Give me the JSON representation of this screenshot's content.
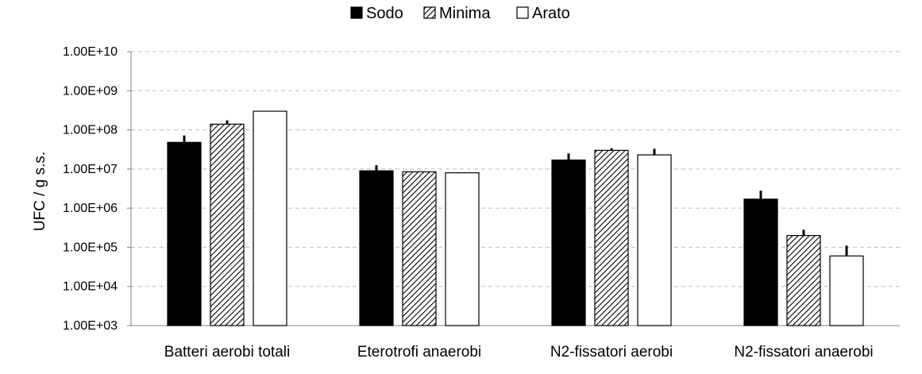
{
  "chart_data": {
    "type": "bar",
    "title": "",
    "xlabel": "",
    "ylabel": "UFC / g s.s.",
    "yscale": "log",
    "ylim": [
      1000,
      10000000000
    ],
    "yticks": [
      {
        "value": 1000,
        "label": "1.00E+03"
      },
      {
        "value": 10000,
        "label": "1.00E+04"
      },
      {
        "value": 100000,
        "label": "1.00E+05"
      },
      {
        "value": 1000000,
        "label": "1.00E+06"
      },
      {
        "value": 10000000,
        "label": "1.00E+07"
      },
      {
        "value": 100000000,
        "label": "1.00E+08"
      },
      {
        "value": 1000000000,
        "label": "1.00E+09"
      },
      {
        "value": 10000000000,
        "label": "1.00E+10"
      }
    ],
    "grid": "horizontal dashed",
    "legend": "top-center",
    "categories": [
      "Batteri aerobi totali",
      "Eterotrofi anaerobi",
      "N2-fissatori aerobi",
      "N2-fissatori anaerobi"
    ],
    "series": [
      {
        "name": "Sodo",
        "fill": "#000000",
        "values": [
          48000000,
          9000000,
          17000000,
          1700000
        ],
        "error_upper": [
          72000000,
          12500000,
          25000000,
          2800000
        ]
      },
      {
        "name": "Minima",
        "fill": "hatch",
        "values": [
          140000000,
          8500000,
          30000000,
          200000
        ],
        "error_upper": [
          175000000,
          8500000,
          34000000,
          280000
        ]
      },
      {
        "name": "Arato",
        "fill": "#ffffff",
        "values": [
          300000000,
          8000000,
          23000000,
          60000
        ],
        "error_upper": [
          300000000,
          8000000,
          33000000,
          110000
        ]
      }
    ]
  }
}
